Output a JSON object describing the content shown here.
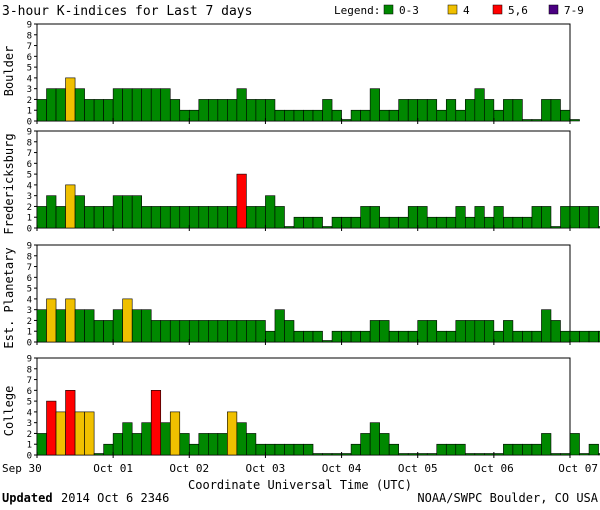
{
  "header": {
    "title": "3-hour K-indices for Last 7 days",
    "legend_label": "Legend:",
    "legend_items": [
      {
        "label": "0-3",
        "color": "#008800"
      },
      {
        "label": "4",
        "color": "#f0c000"
      },
      {
        "label": "5,6",
        "color": "#ff0000"
      },
      {
        "label": "7-9",
        "color": "#4b0082"
      }
    ]
  },
  "footer": {
    "updated_label": "Updated",
    "updated_value": "2014 Oct  6 2346",
    "source": "NOAA/SWPC Boulder, CO USA"
  },
  "chart_data": {
    "type": "bar",
    "title": "3-hour K-indices for Last 7 days",
    "xlabel": "Coordinate Universal Time (UTC)",
    "x_ticks": [
      "Sep 30",
      "Oct 01",
      "Oct 02",
      "Oct 03",
      "Oct 04",
      "Oct 05",
      "Oct 06",
      "Oct 07"
    ],
    "y_ticks": [
      0,
      1,
      2,
      3,
      4,
      5,
      6,
      7,
      8,
      9
    ],
    "ylim": [
      0,
      9
    ],
    "intervals_per_day": 8,
    "days": 7,
    "color_scale": [
      {
        "range": "0-3",
        "color": "#008800"
      },
      {
        "range": "4",
        "color": "#f0c000"
      },
      {
        "range": "5,6",
        "color": "#ff0000"
      },
      {
        "range": "7-9",
        "color": "#4b0082"
      }
    ],
    "panels": [
      {
        "name": "Boulder",
        "values": [
          2,
          3,
          3,
          4,
          3,
          2,
          2,
          2,
          3,
          3,
          3,
          3,
          3,
          3,
          2,
          1,
          1,
          2,
          2,
          2,
          2,
          3,
          2,
          2,
          2,
          1,
          1,
          1,
          1,
          1,
          2,
          1,
          0,
          1,
          1,
          3,
          1,
          1,
          2,
          2,
          2,
          2,
          1,
          2,
          1,
          2,
          3,
          2,
          1,
          2,
          2,
          0,
          0,
          2,
          2,
          1,
          0
        ]
      },
      {
        "name": "Fredericksburg",
        "values": [
          2,
          3,
          2,
          4,
          3,
          2,
          2,
          2,
          3,
          3,
          3,
          2,
          2,
          2,
          2,
          2,
          2,
          2,
          2,
          2,
          2,
          5,
          2,
          2,
          3,
          2,
          0,
          1,
          1,
          1,
          0,
          1,
          1,
          1,
          2,
          2,
          1,
          1,
          1,
          2,
          2,
          1,
          1,
          1,
          2,
          1,
          2,
          1,
          2,
          1,
          1,
          1,
          2,
          2,
          0,
          2,
          2,
          2,
          2,
          0
        ]
      },
      {
        "name": "Est. Planetary",
        "values": [
          3,
          4,
          3,
          4,
          3,
          3,
          2,
          2,
          3,
          4,
          3,
          3,
          2,
          2,
          2,
          2,
          2,
          2,
          2,
          2,
          2,
          2,
          2,
          2,
          1,
          3,
          2,
          1,
          1,
          1,
          0,
          1,
          1,
          1,
          1,
          2,
          2,
          1,
          1,
          1,
          2,
          2,
          1,
          1,
          2,
          2,
          2,
          2,
          1,
          2,
          1,
          1,
          1,
          3,
          2,
          1,
          1,
          1,
          1,
          1
        ]
      },
      {
        "name": "College",
        "values": [
          2,
          5,
          4,
          6,
          4,
          4,
          0,
          1,
          2,
          3,
          2,
          3,
          6,
          3,
          4,
          2,
          1,
          2,
          2,
          2,
          4,
          3,
          2,
          1,
          1,
          1,
          1,
          1,
          1,
          0,
          0,
          0,
          0,
          1,
          2,
          3,
          2,
          1,
          0,
          0,
          0,
          0,
          1,
          1,
          1,
          0,
          0,
          0,
          0,
          1,
          1,
          1,
          1,
          2,
          0,
          0,
          2,
          0,
          1,
          0
        ]
      }
    ]
  }
}
